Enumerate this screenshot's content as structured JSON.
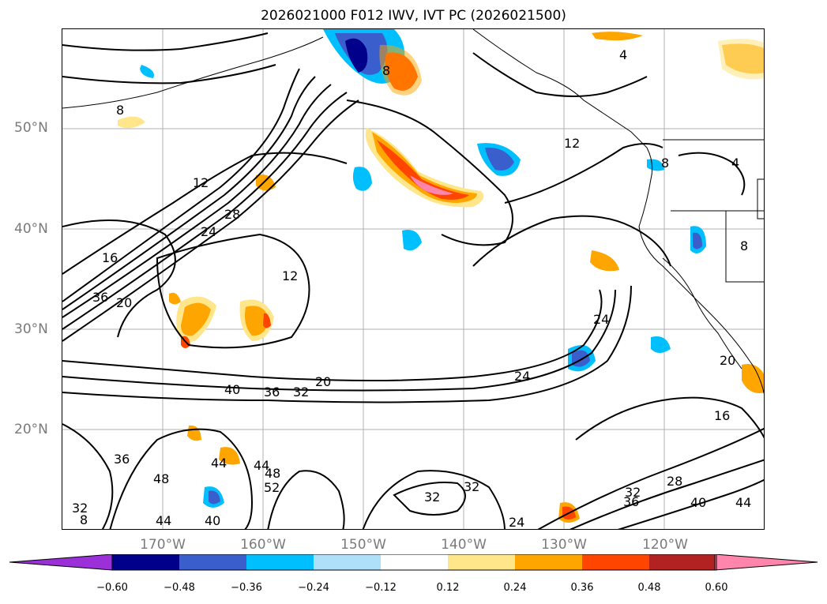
{
  "title": "2026021000 F012 IWV, IVT PC (2026021500)",
  "lat_labels": [
    "50°N",
    "40°N",
    "30°N",
    "20°N"
  ],
  "lon_labels": [
    "170°W",
    "160°W",
    "150°W",
    "140°W",
    "130°W",
    "120°W"
  ],
  "colorbar": {
    "ticks": [
      "−0.60",
      "−0.48",
      "−0.36",
      "−0.24",
      "−0.12",
      "0.12",
      "0.24",
      "0.36",
      "0.48",
      "0.60"
    ],
    "colors": [
      "#9b30d9",
      "#00008b",
      "#3a5fcd",
      "#00bfff",
      "#afe0fa",
      "#ffffff",
      "#ffe68a",
      "#ffa500",
      "#ff4500",
      "#b22222",
      "#ff85ad"
    ]
  },
  "contour_labels": [
    "8",
    "4",
    "12",
    "8",
    "4",
    "12",
    "24",
    "28",
    "16",
    "36",
    "20",
    "12",
    "24",
    "24",
    "20",
    "40",
    "36",
    "32",
    "20",
    "16",
    "36",
    "48",
    "44",
    "44",
    "48",
    "52",
    "32",
    "32",
    "24",
    "28",
    "32",
    "36",
    "40",
    "44",
    "32",
    "8",
    "44",
    "40",
    "8",
    "8"
  ]
}
